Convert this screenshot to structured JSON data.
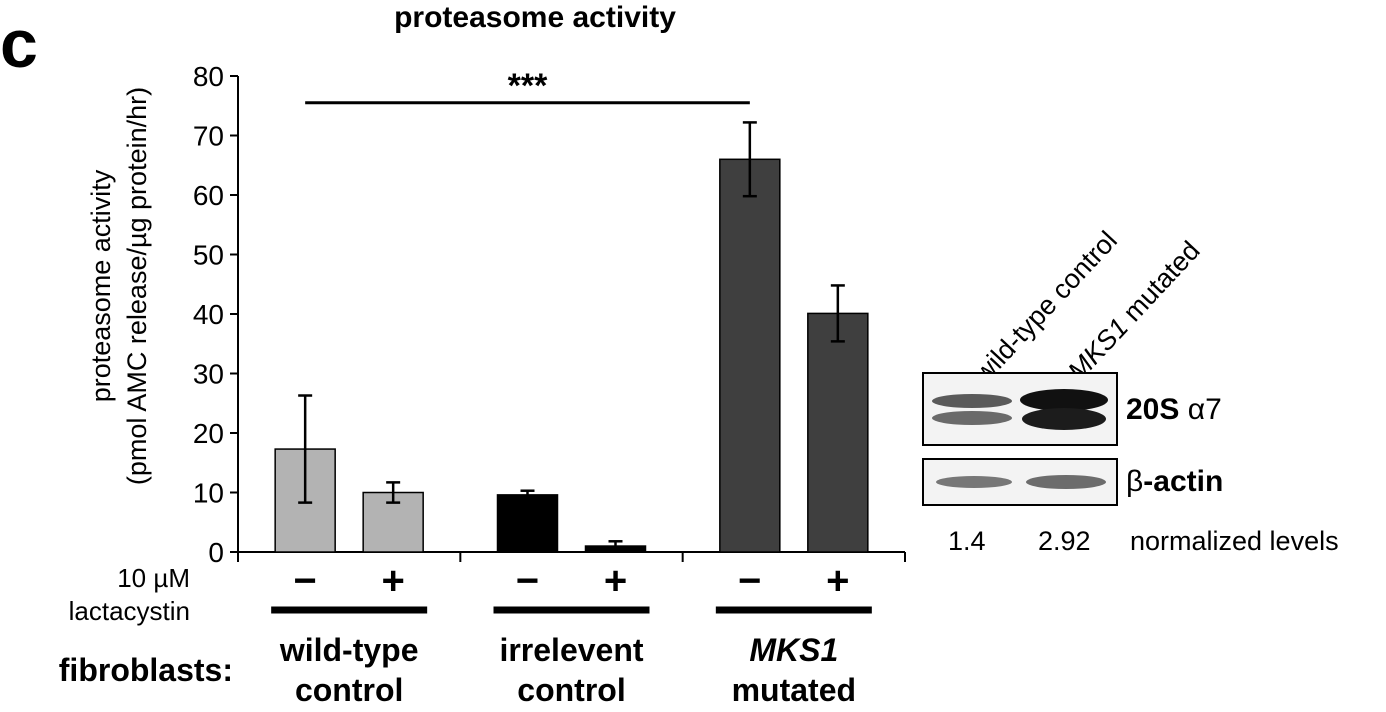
{
  "panel_letter": "c",
  "chart_data": {
    "type": "bar",
    "title": "proteasome activity",
    "ylabel_line1": "proteasome activity",
    "ylabel_line2": "(pmol AMC release/µg protein/hr)",
    "ylim": [
      0,
      80
    ],
    "yticks": [
      0,
      10,
      20,
      30,
      40,
      50,
      60,
      70,
      80
    ],
    "bars": [
      {
        "group": 0,
        "treatment": "−",
        "value": 17.3,
        "error": 9.0,
        "color": "#b3b3b3"
      },
      {
        "group": 0,
        "treatment": "+",
        "value": 10.0,
        "error": 1.7,
        "color": "#b3b3b3"
      },
      {
        "group": 1,
        "treatment": "−",
        "value": 9.6,
        "error": 0.7,
        "color": "#000000"
      },
      {
        "group": 1,
        "treatment": "+",
        "value": 1.0,
        "error": 0.8,
        "color": "#000000"
      },
      {
        "group": 2,
        "treatment": "−",
        "value": 66.0,
        "error": 6.2,
        "color": "#3f3f3f"
      },
      {
        "group": 2,
        "treatment": "+",
        "value": 40.1,
        "error": 4.7,
        "color": "#3f3f3f"
      }
    ],
    "significance": {
      "label": "***",
      "from_bar": 0,
      "to_bar": 4,
      "y": 75.5
    },
    "treatment_label_line1": "10 µM",
    "treatment_label_line2": "lactacystin",
    "row_label": "fibroblasts:",
    "groups": [
      {
        "line1": "wild-type",
        "line2": "control",
        "italic_line1": false
      },
      {
        "line1": "irrelevent",
        "line2": "control",
        "italic_line1": false
      },
      {
        "line1": "MKS1",
        "line2": "mutated",
        "italic_line1": true
      }
    ]
  },
  "blot": {
    "lane_labels": [
      "wild-type control",
      "MKS1 mutated"
    ],
    "lane2_italic_part": "MKS1",
    "lane2_rest": " mutated",
    "band1_bold": "20S",
    "band1_rest": " α7",
    "band2_symbol": "β",
    "band2_bold": "-actin",
    "normalized_values": [
      "1.4",
      "2.92"
    ],
    "normalized_label": "normalized levels"
  }
}
